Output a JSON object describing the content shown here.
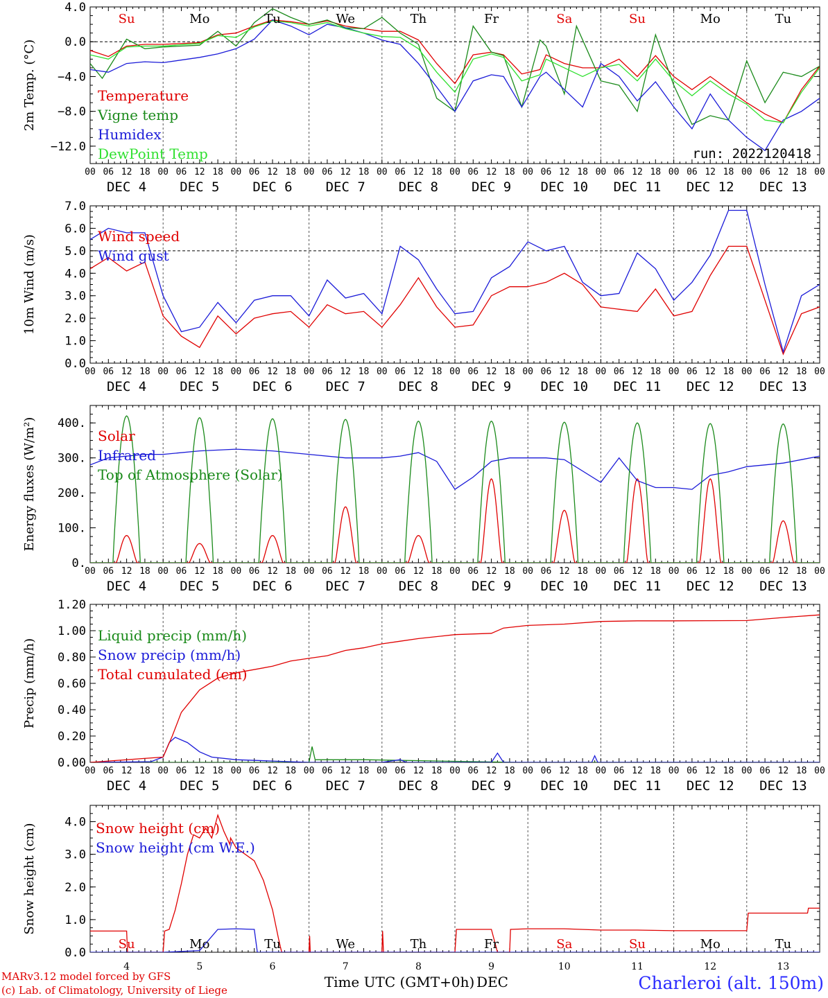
{
  "colors": {
    "red": "#e00000",
    "green": "#1a8a1a",
    "blue": "#1a1ad8",
    "lightgreen": "#30e030",
    "black": "#000000",
    "grid": "#555555"
  },
  "days": [
    "Su",
    "Mo",
    "Tu",
    "We",
    "Th",
    "Fr",
    "Sa",
    "Su",
    "Mo",
    "Tu"
  ],
  "weekend_days": [
    "Su",
    "Sa"
  ],
  "hour_ticks": [
    "00",
    "06",
    "12",
    "18"
  ],
  "date_labels": [
    "DEC  4",
    "DEC  5",
    "DEC  6",
    "DEC  7",
    "DEC  8",
    "DEC  9",
    "DEC 10",
    "DEC 11",
    "DEC 12",
    "DEC 13"
  ],
  "bottom_day_numbers": [
    "4",
    "5",
    "6",
    "7",
    "8",
    "9",
    "10",
    "11",
    "12",
    "13"
  ],
  "footer": {
    "credit_line1": "MARv3.12 model forced by GFS",
    "credit_line2": "(c) Lab. of Climatology, University of Liege",
    "xaxis_label": "Time UTC (GMT+0h)",
    "xaxis_unit": "DEC",
    "station": "Charleroi (alt. 150m)"
  },
  "chart_data": [
    {
      "type": "line",
      "ylabel": "2m Temp. (°C)",
      "ylim": [
        -14,
        4
      ],
      "yticks": [
        4.0,
        0.0,
        -4.0,
        -8.0,
        -12.0
      ],
      "ytick_labels": [
        "4.0",
        "0.0",
        "−4.0",
        "−8.0",
        "−12.0"
      ],
      "reference_line": 0.0,
      "annotation": "run: 2022120418",
      "xlim_hours": [
        0,
        240
      ],
      "series": [
        {
          "name": "Temperature",
          "color": "red",
          "x": [
            0,
            6,
            12,
            18,
            24,
            36,
            42,
            48,
            54,
            60,
            66,
            72,
            78,
            84,
            90,
            96,
            102,
            108,
            114,
            120,
            126,
            132,
            136,
            142,
            148,
            150,
            156,
            162,
            168,
            174,
            180,
            186,
            192,
            198,
            204,
            210,
            216,
            222,
            228,
            234,
            240
          ],
          "y": [
            -1,
            -1.7,
            -0.5,
            -0.3,
            -0.3,
            -0.1,
            0.8,
            1,
            1.8,
            2.5,
            2.3,
            2,
            2.4,
            1.8,
            1.5,
            1.2,
            1.2,
            0.2,
            -2.5,
            -4.8,
            -1.5,
            -1.2,
            -1.5,
            -3.7,
            -3.2,
            -1.5,
            -2.5,
            -3,
            -3,
            -2,
            -4,
            -1.6,
            -4,
            -5.5,
            -4,
            -5.5,
            -7,
            -8.3,
            -9.3,
            -5.5,
            -2.8
          ]
        },
        {
          "name": "Vigne temp",
          "color": "green",
          "x": [
            0,
            4,
            12,
            18,
            24,
            36,
            42,
            48,
            54,
            60,
            66,
            72,
            78,
            84,
            90,
            96,
            102,
            108,
            114,
            120,
            126,
            132,
            136,
            142,
            148,
            150,
            156,
            160,
            168,
            174,
            180,
            186,
            192,
            198,
            204,
            210,
            216,
            222,
            228,
            234,
            240
          ],
          "y": [
            -2.5,
            -4.2,
            0.3,
            -0.8,
            -0.6,
            -0.4,
            1.2,
            -0.5,
            2.2,
            3.8,
            2.8,
            2,
            2.5,
            1.6,
            1.5,
            2.8,
            1,
            -0.3,
            -6.5,
            -8,
            1.8,
            -1.2,
            -1.6,
            -7.5,
            0.2,
            -0.5,
            -6,
            1.8,
            -4.5,
            -5,
            -8,
            0.8,
            -5,
            -9.5,
            -8.5,
            -9,
            -2.2,
            -7,
            -3.5,
            -4,
            -2.8
          ]
        },
        {
          "name": "Humidex",
          "color": "blue",
          "x": [
            0,
            6,
            12,
            18,
            24,
            36,
            42,
            48,
            54,
            60,
            66,
            72,
            78,
            84,
            90,
            96,
            102,
            108,
            114,
            120,
            126,
            132,
            136,
            142,
            148,
            150,
            156,
            162,
            168,
            174,
            180,
            186,
            192,
            198,
            204,
            210,
            216,
            222,
            228,
            234,
            240
          ],
          "y": [
            -3.2,
            -3.5,
            -2.5,
            -2.3,
            -2.4,
            -1.8,
            -1.4,
            -0.8,
            0.3,
            2.5,
            1.8,
            0.8,
            2,
            1.6,
            1,
            0.2,
            -0.3,
            -2.5,
            -5.2,
            -8,
            -4.5,
            -3.8,
            -4,
            -7.5,
            -4,
            -3.5,
            -5.5,
            -7.5,
            -2.5,
            -4,
            -6.8,
            -4.6,
            -7.5,
            -10,
            -6,
            -9,
            -11,
            -12.5,
            -9,
            -8,
            -6.5
          ]
        },
        {
          "name": "DewPoint Temp",
          "color": "lightgreen",
          "x": [
            0,
            6,
            12,
            18,
            24,
            36,
            42,
            48,
            54,
            60,
            66,
            72,
            78,
            84,
            90,
            96,
            102,
            108,
            114,
            120,
            126,
            132,
            136,
            142,
            148,
            150,
            156,
            162,
            168,
            174,
            180,
            186,
            192,
            198,
            204,
            210,
            216,
            222,
            228,
            234,
            240
          ],
          "y": [
            -1.5,
            -2,
            -0.6,
            -0.5,
            -0.5,
            -0.2,
            0.7,
            0.5,
            1.7,
            2.4,
            2.2,
            1.8,
            2.2,
            1.5,
            1,
            0.6,
            0.5,
            -0.8,
            -3.5,
            -5.8,
            -2,
            -1.4,
            -1.8,
            -4.5,
            -3.8,
            -2,
            -3,
            -4,
            -3,
            -2.6,
            -4.5,
            -2,
            -4.5,
            -6.2,
            -4.5,
            -6,
            -7.2,
            -9,
            -9.3,
            -5.8,
            -3
          ]
        }
      ]
    },
    {
      "type": "line",
      "ylabel": "10m Wind (m/s)",
      "ylim": [
        0,
        7
      ],
      "yticks": [
        7.0,
        6.0,
        5.0,
        4.0,
        3.0,
        2.0,
        1.0,
        0.0
      ],
      "ytick_labels": [
        "7.0",
        "6.0",
        "5.0",
        "4.0",
        "3.0",
        "2.0",
        "1.0",
        "0.0"
      ],
      "reference_line": 5.0,
      "xlim_hours": [
        0,
        240
      ],
      "series": [
        {
          "name": "Wind speed",
          "color": "red",
          "x": [
            0,
            6,
            12,
            18,
            24,
            30,
            36,
            42,
            48,
            54,
            60,
            66,
            72,
            78,
            84,
            90,
            96,
            102,
            108,
            114,
            120,
            126,
            132,
            138,
            144,
            150,
            156,
            162,
            168,
            174,
            180,
            186,
            192,
            198,
            204,
            210,
            216,
            222,
            228,
            234,
            240
          ],
          "y": [
            4.2,
            4.7,
            4.1,
            4.5,
            2.1,
            1.2,
            0.7,
            2.1,
            1.3,
            2,
            2.2,
            2.3,
            1.6,
            2.6,
            2.2,
            2.3,
            1.6,
            2.6,
            3.8,
            2.5,
            1.6,
            1.7,
            3,
            3.4,
            3.4,
            3.6,
            4,
            3.5,
            2.5,
            2.4,
            2.3,
            3.3,
            2.1,
            2.3,
            3.9,
            5.2,
            5.2,
            2.8,
            0.4,
            2.2,
            2.5
          ]
        },
        {
          "name": "Wind gust",
          "color": "blue",
          "x": [
            0,
            6,
            12,
            18,
            24,
            30,
            36,
            42,
            48,
            54,
            60,
            66,
            72,
            78,
            84,
            90,
            96,
            102,
            108,
            114,
            120,
            126,
            132,
            138,
            144,
            150,
            156,
            162,
            168,
            174,
            180,
            186,
            192,
            198,
            204,
            210,
            216,
            222,
            228,
            234,
            240
          ],
          "y": [
            5.5,
            6,
            5.8,
            5.8,
            3,
            1.4,
            1.6,
            2.7,
            1.8,
            2.8,
            3,
            3,
            2.1,
            3.7,
            2.9,
            3.1,
            2.2,
            5.2,
            4.6,
            3.3,
            2.2,
            2.3,
            3.8,
            4.3,
            5.4,
            5,
            5.2,
            3.6,
            3,
            3.1,
            4.9,
            4.2,
            2.8,
            3.6,
            4.8,
            6.8,
            6.8,
            3.5,
            0.5,
            3,
            3.5
          ]
        }
      ]
    },
    {
      "type": "line",
      "ylabel": "Energy fluxes (W/m²)",
      "ylim": [
        0,
        450
      ],
      "yticks": [
        400,
        300,
        200,
        100,
        0
      ],
      "ytick_labels": [
        "400.",
        "300.",
        "200.",
        "100.",
        "0."
      ],
      "xlim_hours": [
        0,
        240
      ],
      "series": [
        {
          "name": "Solar",
          "color": "red",
          "daily_peaks": [
            78,
            55,
            78,
            160,
            78,
            240,
            150,
            240,
            240,
            120
          ]
        },
        {
          "name": "Infrared",
          "color": "blue",
          "x": [
            0,
            6,
            12,
            18,
            24,
            36,
            48,
            60,
            72,
            84,
            96,
            102,
            108,
            114,
            120,
            126,
            132,
            138,
            144,
            150,
            156,
            168,
            174,
            180,
            186,
            192,
            198,
            204,
            210,
            216,
            222,
            228,
            234,
            240
          ],
          "y": [
            280,
            300,
            305,
            310,
            310,
            320,
            325,
            320,
            310,
            300,
            300,
            305,
            315,
            290,
            210,
            245,
            290,
            300,
            300,
            300,
            295,
            230,
            300,
            235,
            215,
            215,
            210,
            250,
            260,
            275,
            280,
            285,
            295,
            305
          ]
        },
        {
          "name": "Top of Atmosphere (Solar)",
          "color": "green",
          "daily_peaks": [
            420,
            415,
            412,
            410,
            405,
            405,
            402,
            400,
            398,
            397
          ]
        }
      ]
    },
    {
      "type": "line",
      "ylabel": "Precip (mm/h)",
      "ylim": [
        0,
        1.2
      ],
      "yticks": [
        1.2,
        1.0,
        0.8,
        0.6,
        0.4,
        0.2,
        0.0
      ],
      "ytick_labels": [
        "1.20",
        "1.00",
        "0.80",
        "0.60",
        "0.40",
        "0.20",
        "0.00"
      ],
      "xlim_hours": [
        0,
        240
      ],
      "series": [
        {
          "name": "Liquid precip (mm/h)",
          "color": "green",
          "x": [
            0,
            72,
            73,
            74,
            90,
            140,
            190,
            240
          ],
          "y": [
            0,
            0,
            0.12,
            0.02,
            0.02,
            0,
            0,
            0
          ]
        },
        {
          "name": "Snow precip (mm/h)",
          "color": "blue",
          "x": [
            0,
            20,
            24,
            26,
            28,
            32,
            36,
            40,
            48,
            60,
            72,
            96,
            102,
            104,
            120,
            132,
            134,
            136,
            165,
            166,
            167,
            192,
            240
          ],
          "y": [
            0,
            0.005,
            0.04,
            0.15,
            0.19,
            0.15,
            0.08,
            0.04,
            0.02,
            0.01,
            0,
            0,
            0.02,
            0,
            0,
            0,
            0.07,
            0,
            0,
            0.05,
            0,
            0,
            0
          ]
        },
        {
          "name": "Total cumulated (cm)",
          "color": "red",
          "x": [
            0,
            24,
            27,
            30,
            36,
            42,
            48,
            60,
            66,
            72,
            78,
            84,
            90,
            96,
            102,
            108,
            120,
            132,
            136,
            144,
            156,
            168,
            180,
            192,
            204,
            216,
            228,
            240
          ],
          "y": [
            0,
            0.04,
            0.2,
            0.38,
            0.55,
            0.64,
            0.68,
            0.73,
            0.77,
            0.79,
            0.81,
            0.85,
            0.87,
            0.9,
            0.92,
            0.94,
            0.97,
            0.98,
            1.02,
            1.04,
            1.05,
            1.07,
            1.075,
            1.075,
            1.076,
            1.077,
            1.1,
            1.12
          ]
        }
      ]
    },
    {
      "type": "line",
      "ylabel": "Snow height (cm)",
      "ylim": [
        0,
        4.5
      ],
      "yticks": [
        4.0,
        3.0,
        2.0,
        1.0,
        0.0
      ],
      "ytick_labels": [
        "4.0",
        "3.0",
        "2.0",
        "1.0",
        "0.0"
      ],
      "xlim_hours": [
        0,
        240
      ],
      "series": [
        {
          "name": "Snow height (cm)",
          "color": "red",
          "x": [
            0,
            12,
            12.3,
            21,
            21.3,
            24,
            24.5,
            26,
            28,
            29,
            30,
            32,
            34,
            36,
            38,
            40,
            42,
            44,
            46,
            46.2,
            48,
            54,
            57,
            60,
            62,
            63,
            64,
            72,
            72.2,
            72.4,
            73,
            96,
            96.2,
            96.5,
            97,
            120,
            120.5,
            126,
            132,
            134,
            138,
            138.3,
            144,
            156,
            168,
            180,
            192,
            204,
            216,
            216.5,
            228,
            236,
            236.3,
            240
          ],
          "y": [
            0.65,
            0.65,
            0,
            0,
            0,
            0,
            0.65,
            0.7,
            1.3,
            1.7,
            2.1,
            3,
            3.6,
            3.5,
            3.8,
            3.5,
            4.2,
            3.7,
            3.3,
            3.5,
            3.2,
            2.8,
            2.2,
            1.3,
            0.4,
            0,
            0,
            0,
            0.5,
            0,
            0,
            0,
            0.65,
            0,
            0,
            0,
            0.7,
            0.7,
            0.7,
            0,
            0,
            0.7,
            0.72,
            0.72,
            0.68,
            0.68,
            0.66,
            0.66,
            0.66,
            1.2,
            1.2,
            1.2,
            1.35,
            1.35
          ]
        },
        {
          "name": "Snow height (cm W.E.)",
          "color": "blue",
          "x": [
            0,
            24,
            36,
            42,
            48,
            54,
            55,
            240
          ],
          "y": [
            0,
            0,
            0.05,
            0.7,
            0.72,
            0.7,
            0,
            0
          ]
        }
      ]
    }
  ]
}
